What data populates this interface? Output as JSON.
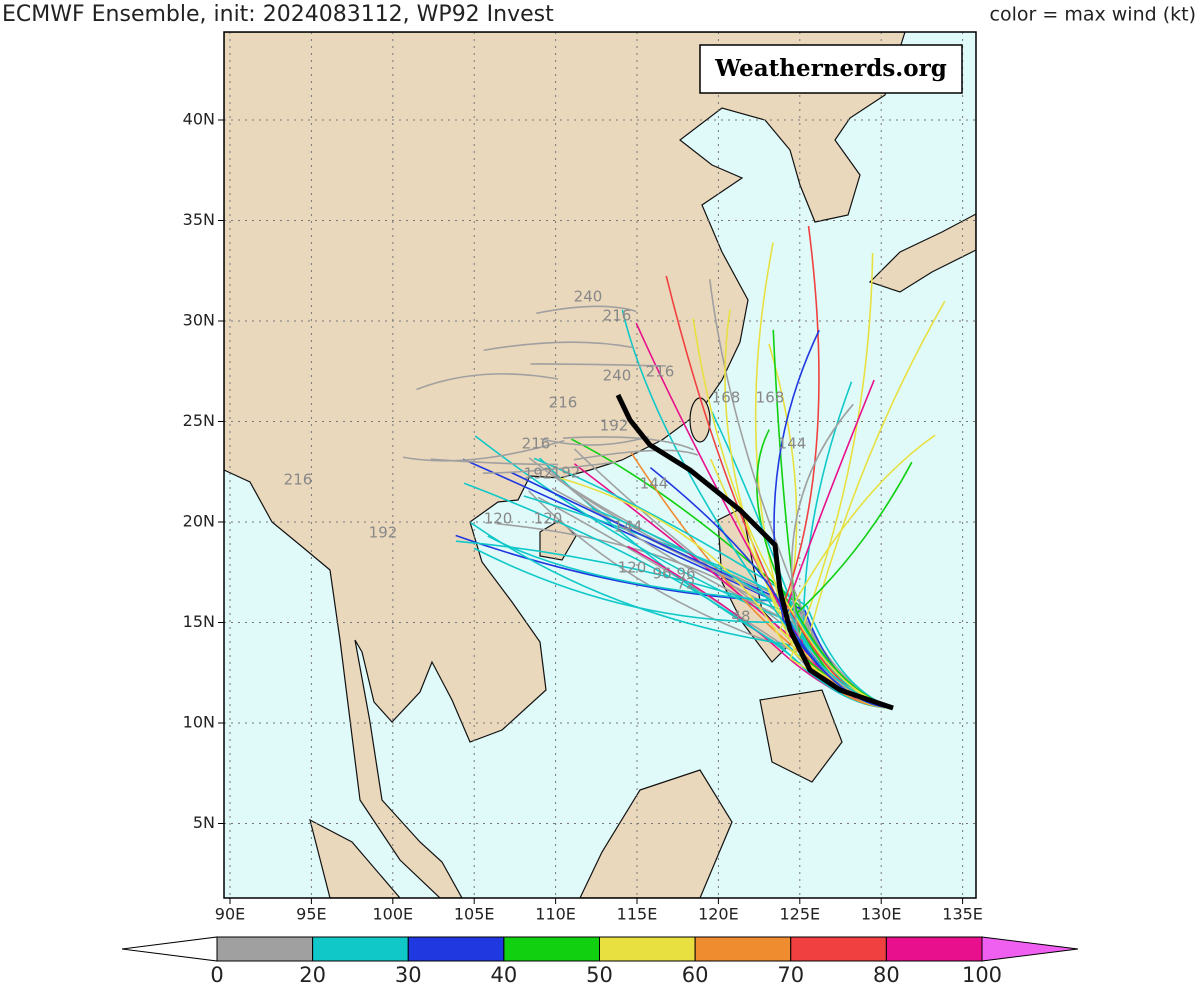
{
  "header": {
    "title": "ECMWF Ensemble, init: 2024083112, WP92 Invest",
    "legend_title": "color = max wind (kt)"
  },
  "watermark": "Weathernerds.org",
  "map": {
    "lat_labels": [
      "40N",
      "35N",
      "30N",
      "25N",
      "20N",
      "15N",
      "10N",
      "5N"
    ],
    "lon_labels": [
      "90E",
      "95E",
      "100E",
      "105E",
      "110E",
      "115E",
      "120E",
      "125E",
      "130E",
      "135E"
    ],
    "track_labels": [
      "240",
      "216",
      "240",
      "216",
      "216",
      "192",
      "216",
      "192",
      "192",
      "216",
      "168",
      "192",
      "144",
      "144",
      "120",
      "120",
      "96",
      "96",
      "72",
      "48",
      "144",
      "120",
      "168"
    ]
  },
  "colorbar": {
    "labels": [
      "0",
      "20",
      "30",
      "40",
      "50",
      "60",
      "70",
      "80",
      "100"
    ],
    "low_color": "#ffffff",
    "colors": [
      "#a0a0a0",
      "#10c8c8",
      "#2038e0",
      "#10d010",
      "#e8e040",
      "#f08c30",
      "#f04040",
      "#e8108c"
    ],
    "high_color": "#f060f0"
  }
}
